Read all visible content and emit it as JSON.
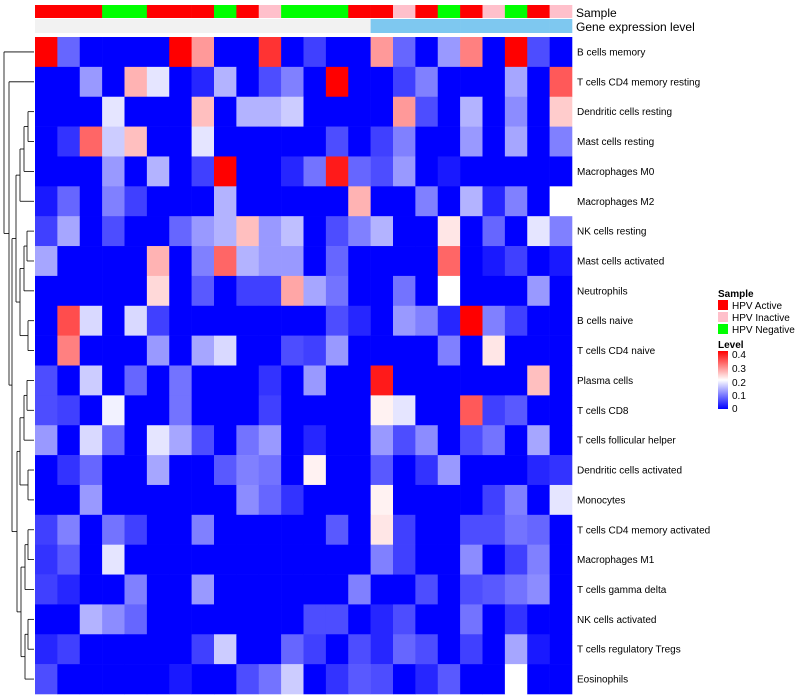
{
  "chart_data": {
    "type": "heatmap",
    "title": "",
    "value_scale": {
      "name": "Level",
      "min": 0,
      "max": 0.4,
      "ticks": [
        "0.4",
        "0.3",
        "0.2",
        "0.1",
        "0"
      ],
      "colors": [
        "#0000ff",
        "#ffffff",
        "#ff0000"
      ]
    },
    "annotation_tracks": [
      {
        "label": "Sample",
        "values": [
          "HPV Active",
          "HPV Active",
          "HPV Active",
          "HPV Negative",
          "HPV Negative",
          "HPV Active",
          "HPV Active",
          "HPV Active",
          "HPV Negative",
          "HPV Active",
          "HPV Inactive",
          "HPV Negative",
          "HPV Negative",
          "HPV Negative",
          "HPV Active",
          "HPV Active",
          "HPV Inactive",
          "HPV Active",
          "HPV Negative",
          "HPV Active",
          "HPV Inactive",
          "HPV Negative",
          "HPV Active",
          "HPV Inactive"
        ]
      },
      {
        "label": "Gene expression level",
        "color": "#7ec8f0",
        "values": [
          "Low",
          "Low",
          "Low",
          "Low",
          "Low",
          "Low",
          "Low",
          "Low",
          "Low",
          "Low",
          "Low",
          "Low",
          "Low",
          "Low",
          "Low",
          "High",
          "High",
          "High",
          "High",
          "High",
          "High",
          "High",
          "High",
          "High"
        ],
        "low_color": "#f2f2f2",
        "high_color": "#7ec8f0"
      }
    ],
    "sample_legend": {
      "title": "Sample",
      "entries": [
        {
          "label": "HPV Active",
          "color": "#ff0000"
        },
        {
          "label": "HPV Inactive",
          "color": "#ffc0cb"
        },
        {
          "label": "HPV Negative",
          "color": "#00ff00"
        }
      ]
    },
    "rows": [
      "B cells memory",
      "T cells CD4 memory resting",
      "Dendritic cells resting",
      "Mast cells resting",
      "Macrophages M0",
      "Macrophages M2",
      "NK cells resting",
      "Mast cells activated",
      "Neutrophils",
      "B cells naive",
      "T cells CD4 naive",
      "Plasma cells",
      "T cells CD8",
      "T cells follicular helper",
      "Dendritic cells activated",
      "Monocytes",
      "T cells CD4 memory activated",
      "Macrophages M1",
      "T cells gamma delta",
      "NK cells activated",
      "T cells regulatory  Tregs",
      "Eosinophils"
    ],
    "values": [
      [
        0.4,
        0.08,
        0.0,
        0.0,
        0.0,
        0.0,
        0.4,
        0.28,
        0.0,
        0.0,
        0.36,
        0.0,
        0.05,
        0.0,
        0.0,
        0.28,
        0.08,
        0.0,
        0.12,
        0.3,
        0.0,
        0.4,
        0.06,
        0.0
      ],
      [
        0.0,
        0.0,
        0.12,
        0.0,
        0.26,
        0.18,
        0.0,
        0.03,
        0.14,
        0.0,
        0.06,
        0.1,
        0.0,
        0.4,
        0.0,
        0.0,
        0.05,
        0.1,
        0.0,
        0.0,
        0.0,
        0.13,
        0.0,
        0.33
      ],
      [
        0.0,
        0.0,
        0.0,
        0.18,
        0.0,
        0.0,
        0.0,
        0.25,
        0.0,
        0.14,
        0.14,
        0.16,
        0.0,
        0.0,
        0.0,
        0.0,
        0.28,
        0.06,
        0.0,
        0.14,
        0.0,
        0.11,
        0.0,
        0.24
      ],
      [
        0.0,
        0.04,
        0.32,
        0.16,
        0.25,
        0.0,
        0.0,
        0.18,
        0.0,
        0.0,
        0.0,
        0.0,
        0.0,
        0.06,
        0.0,
        0.05,
        0.1,
        0.0,
        0.0,
        0.12,
        0.0,
        0.13,
        0.0,
        0.1
      ],
      [
        0.0,
        0.0,
        0.0,
        0.12,
        0.0,
        0.14,
        0.0,
        0.05,
        0.4,
        0.0,
        0.0,
        0.03,
        0.09,
        0.38,
        0.08,
        0.06,
        0.12,
        0.0,
        0.02,
        0.0,
        0.0,
        0.0,
        0.0,
        0.0
      ],
      [
        0.02,
        0.08,
        0.0,
        0.1,
        0.05,
        0.0,
        0.0,
        0.0,
        0.14,
        0.0,
        0.0,
        0.0,
        0.0,
        0.0,
        0.26,
        0.0,
        0.0,
        0.1,
        0.0,
        0.14,
        0.03,
        0.1,
        0.0,
        0.2
      ],
      [
        0.05,
        0.13,
        0.0,
        0.06,
        0.0,
        0.0,
        0.08,
        0.12,
        0.14,
        0.25,
        0.12,
        0.15,
        0.0,
        0.06,
        0.1,
        0.14,
        0.0,
        0.0,
        0.22,
        0.0,
        0.08,
        0.0,
        0.18,
        0.1
      ],
      [
        0.13,
        0.0,
        0.0,
        0.0,
        0.0,
        0.26,
        0.0,
        0.1,
        0.32,
        0.14,
        0.12,
        0.12,
        0.0,
        0.08,
        0.0,
        0.0,
        0.0,
        0.0,
        0.32,
        0.0,
        0.02,
        0.05,
        0.0,
        0.02
      ],
      [
        0.0,
        0.0,
        0.0,
        0.0,
        0.0,
        0.23,
        0.0,
        0.07,
        0.0,
        0.05,
        0.05,
        0.27,
        0.13,
        0.09,
        0.0,
        0.0,
        0.09,
        0.0,
        0.2,
        0.0,
        0.0,
        0.0,
        0.12,
        0.0
      ],
      [
        0.0,
        0.34,
        0.17,
        0.0,
        0.17,
        0.05,
        0.0,
        0.0,
        0.0,
        0.0,
        0.0,
        0.0,
        0.0,
        0.06,
        0.03,
        0.0,
        0.12,
        0.1,
        0.03,
        0.4,
        0.1,
        0.05,
        0.0,
        0.0
      ],
      [
        0.0,
        0.3,
        0.0,
        0.0,
        0.0,
        0.12,
        0.0,
        0.13,
        0.17,
        0.0,
        0.0,
        0.06,
        0.05,
        0.12,
        0.0,
        0.0,
        0.0,
        0.0,
        0.1,
        0.0,
        0.22,
        0.0,
        0.0,
        0.0
      ],
      [
        0.06,
        0.0,
        0.16,
        0.0,
        0.08,
        0.0,
        0.09,
        0.0,
        0.0,
        0.0,
        0.04,
        0.0,
        0.12,
        0.0,
        0.0,
        0.38,
        0.0,
        0.0,
        0.0,
        0.0,
        0.0,
        0.0,
        0.25,
        0.0
      ],
      [
        0.06,
        0.05,
        0.0,
        0.19,
        0.0,
        0.0,
        0.09,
        0.0,
        0.0,
        0.0,
        0.05,
        0.0,
        0.0,
        0.0,
        0.0,
        0.21,
        0.18,
        0.0,
        0.0,
        0.33,
        0.05,
        0.07,
        0.0,
        0.0
      ],
      [
        0.12,
        0.0,
        0.17,
        0.08,
        0.0,
        0.18,
        0.13,
        0.06,
        0.0,
        0.09,
        0.12,
        0.0,
        0.03,
        0.0,
        0.0,
        0.12,
        0.06,
        0.11,
        0.0,
        0.06,
        0.09,
        0.0,
        0.13,
        0.0
      ],
      [
        0.0,
        0.04,
        0.08,
        0.0,
        0.0,
        0.13,
        0.0,
        0.0,
        0.07,
        0.1,
        0.09,
        0.0,
        0.21,
        0.0,
        0.0,
        0.07,
        0.0,
        0.04,
        0.12,
        0.0,
        0.0,
        0.0,
        0.03,
        0.04
      ],
      [
        0.0,
        0.0,
        0.12,
        0.0,
        0.0,
        0.0,
        0.0,
        0.0,
        0.0,
        0.11,
        0.08,
        0.04,
        0.0,
        0.0,
        0.0,
        0.21,
        0.0,
        0.0,
        0.0,
        0.0,
        0.05,
        0.1,
        0.0,
        0.18
      ],
      [
        0.05,
        0.1,
        0.0,
        0.09,
        0.05,
        0.0,
        0.0,
        0.1,
        0.0,
        0.0,
        0.0,
        0.0,
        0.0,
        0.07,
        0.0,
        0.22,
        0.05,
        0.0,
        0.0,
        0.06,
        0.06,
        0.09,
        0.08,
        0.0
      ],
      [
        0.04,
        0.07,
        0.0,
        0.18,
        0.0,
        0.0,
        0.0,
        0.0,
        0.0,
        0.0,
        0.0,
        0.0,
        0.0,
        0.0,
        0.0,
        0.1,
        0.05,
        0.0,
        0.0,
        0.11,
        0.0,
        0.05,
        0.1,
        0.0
      ],
      [
        0.05,
        0.03,
        0.0,
        0.0,
        0.1,
        0.0,
        0.0,
        0.12,
        0.0,
        0.0,
        0.0,
        0.0,
        0.0,
        0.0,
        0.1,
        0.0,
        0.0,
        0.06,
        0.0,
        0.06,
        0.07,
        0.09,
        0.11,
        0.0
      ],
      [
        0.0,
        0.0,
        0.14,
        0.11,
        0.08,
        0.0,
        0.0,
        0.0,
        0.0,
        0.0,
        0.0,
        0.0,
        0.06,
        0.06,
        0.0,
        0.03,
        0.06,
        0.0,
        0.0,
        0.09,
        0.0,
        0.04,
        0.0,
        0.0
      ],
      [
        0.03,
        0.05,
        0.0,
        0.0,
        0.0,
        0.0,
        0.0,
        0.05,
        0.16,
        0.0,
        0.0,
        0.08,
        0.05,
        0.0,
        0.06,
        0.03,
        0.08,
        0.06,
        0.0,
        0.05,
        0.0,
        0.13,
        0.02,
        0.0
      ],
      [
        0.06,
        0.0,
        0.0,
        0.0,
        0.0,
        0.0,
        0.02,
        0.0,
        0.0,
        0.06,
        0.09,
        0.16,
        0.0,
        0.04,
        0.07,
        0.06,
        0.0,
        0.03,
        0.07,
        0.0,
        0.0,
        0.2,
        0.0,
        0.0
      ]
    ]
  }
}
